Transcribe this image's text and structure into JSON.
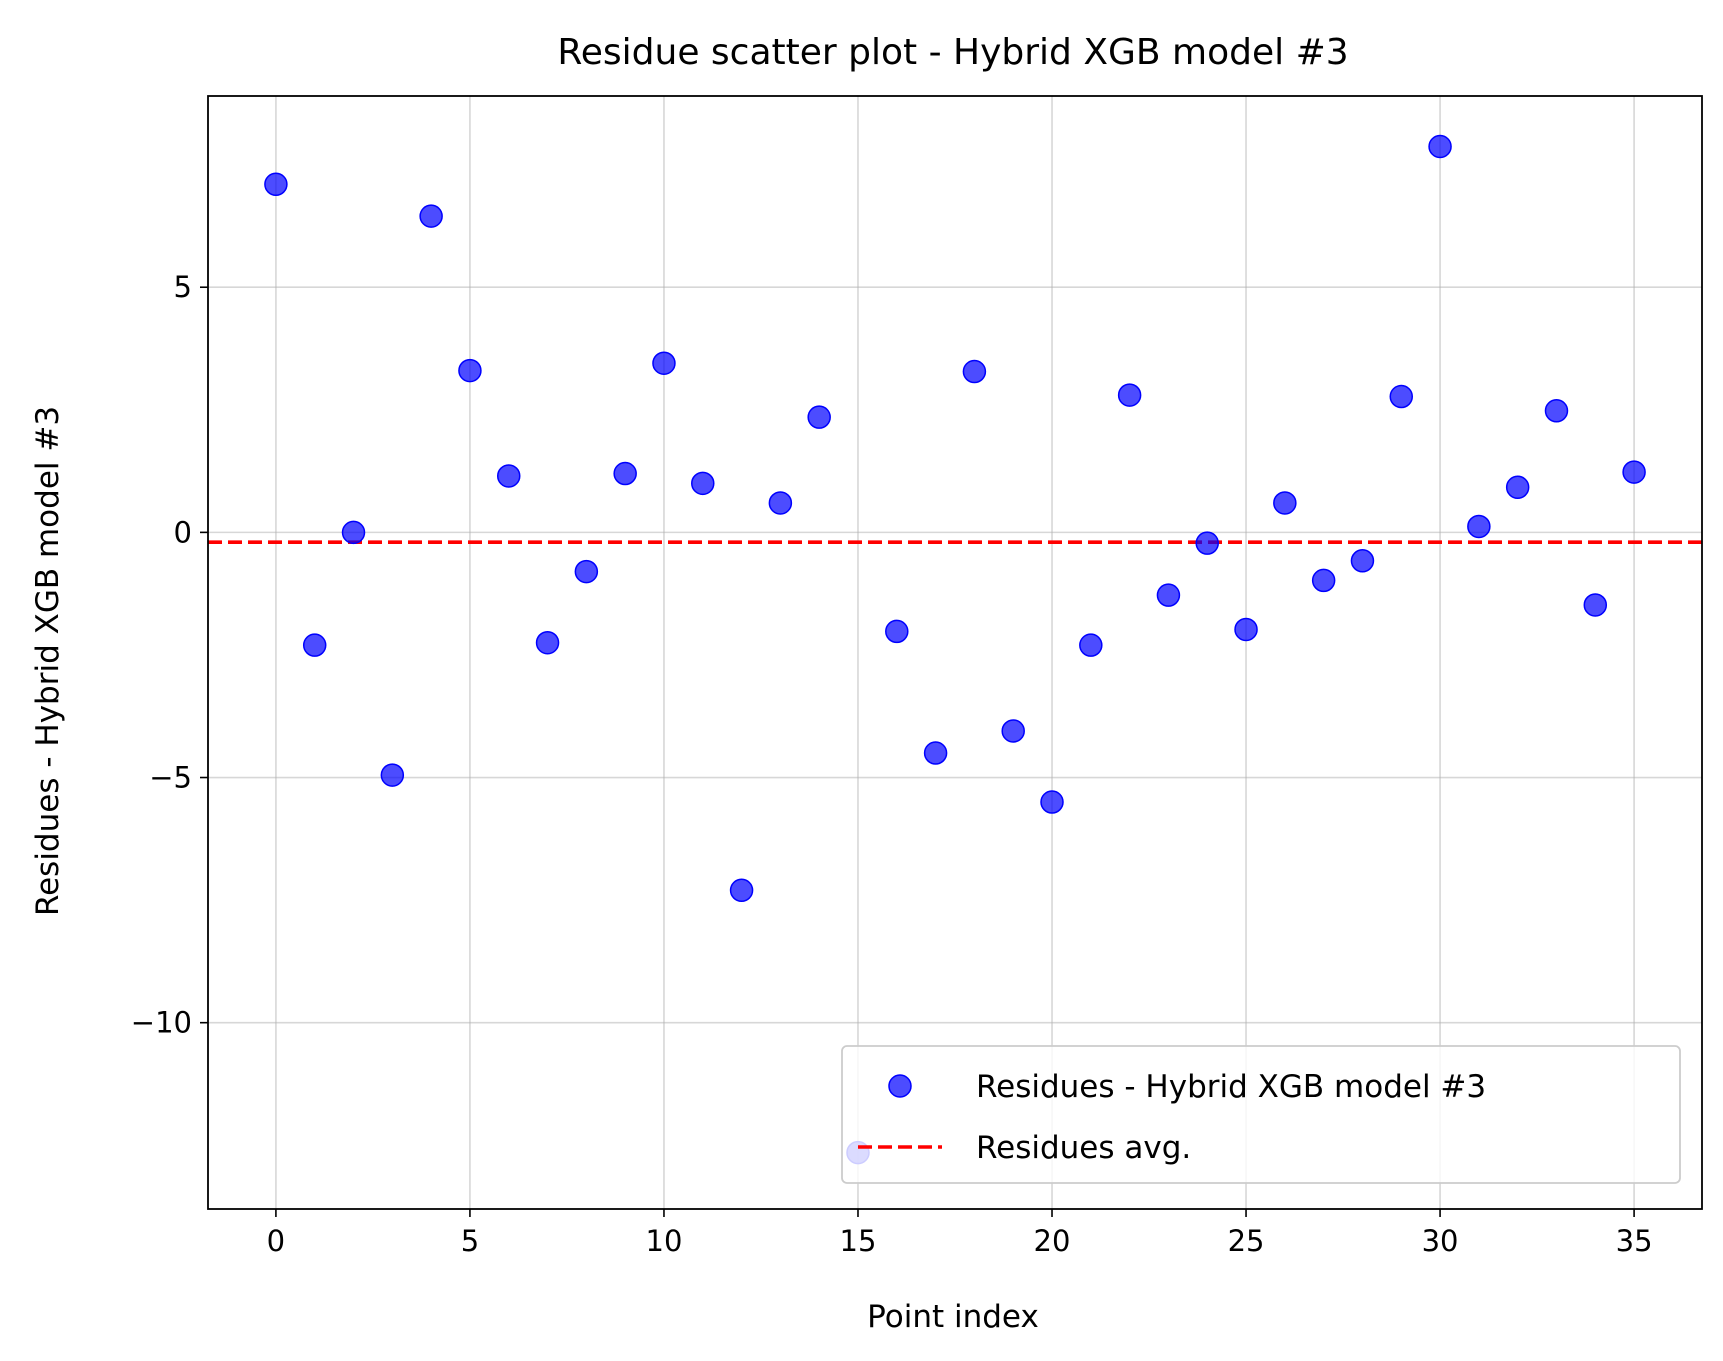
{
  "chart_data": {
    "type": "scatter",
    "title": "Residue scatter plot - Hybrid XGB model #3",
    "xlabel": "Point index",
    "ylabel": "Residues - Hybrid XGB model #3",
    "xlim": [
      -1.75,
      36.75
    ],
    "ylim": [
      -13.8,
      8.9
    ],
    "xticks": [
      0,
      5,
      10,
      15,
      20,
      25,
      30,
      35
    ],
    "xtick_labels": [
      "0",
      "5",
      "10",
      "15",
      "20",
      "25",
      "30",
      "35"
    ],
    "yticks": [
      -10,
      -5,
      0,
      5
    ],
    "ytick_labels": [
      "−10",
      "−5",
      "0",
      "5"
    ],
    "grid": true,
    "legend_position": "lower-right",
    "series": [
      {
        "name": "Residues - Hybrid XGB model #3",
        "kind": "scatter",
        "color": "#0000ff",
        "x": [
          0,
          1,
          2,
          3,
          4,
          5,
          6,
          7,
          8,
          9,
          10,
          11,
          12,
          13,
          14,
          15,
          16,
          17,
          18,
          19,
          20,
          21,
          22,
          23,
          24,
          25,
          26,
          27,
          28,
          29,
          30,
          31,
          32,
          33,
          34,
          35
        ],
        "y": [
          7.1,
          -2.3,
          0.0,
          -4.95,
          6.45,
          3.3,
          1.15,
          -2.25,
          -0.8,
          1.2,
          3.45,
          1.0,
          -7.3,
          0.6,
          2.35,
          -12.65,
          -2.02,
          -4.5,
          3.28,
          -4.05,
          -5.5,
          -2.3,
          2.8,
          -1.28,
          -0.22,
          -1.98,
          0.6,
          -0.98,
          -0.58,
          2.77,
          7.87,
          0.12,
          0.92,
          2.48,
          -1.48,
          1.23
        ]
      },
      {
        "name": "Residues avg.",
        "kind": "hline",
        "color": "#ff0000",
        "y": -0.2
      }
    ]
  }
}
